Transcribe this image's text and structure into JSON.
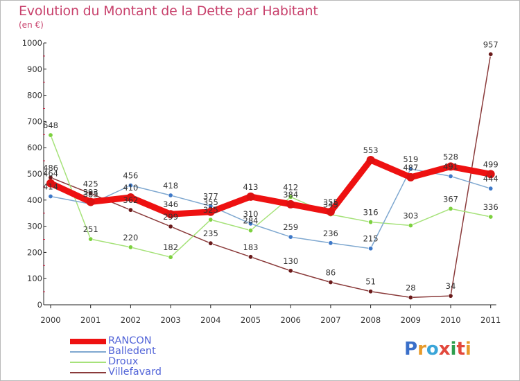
{
  "title": "Evolution du Montant de la Dette par Habitant",
  "subtitle": "(en €)",
  "logo": {
    "text": "Proxiti",
    "letters": [
      {
        "ch": "P",
        "color": "#3a6fc9"
      },
      {
        "ch": "r",
        "color": "#e89a2a"
      },
      {
        "ch": "o",
        "color": "#3aa5d8"
      },
      {
        "ch": "x",
        "color": "#e2483c"
      },
      {
        "ch": "i",
        "color": "#2e9e4e"
      },
      {
        "ch": "t",
        "color": "#e2483c"
      },
      {
        "ch": "i",
        "color": "#e89a2a"
      }
    ]
  },
  "chart_data": {
    "type": "line",
    "title": "Evolution du Montant de la Dette par Habitant",
    "ylabel": "(en €)",
    "x": [
      "2000",
      "2001",
      "2002",
      "2003",
      "2004",
      "2005",
      "2006",
      "2007",
      "2008",
      "2009",
      "2010",
      "2011"
    ],
    "ylim": [
      0,
      1000
    ],
    "yticks": [
      0,
      100,
      200,
      300,
      400,
      500,
      600,
      700,
      800,
      900,
      1000
    ],
    "grid": false,
    "legend_position": "bottom-left",
    "series": [
      {
        "name": "RANCON",
        "color": "#ee1111",
        "marker": "#dd1111",
        "width": 9,
        "values": [
          464,
          393,
          410,
          346,
          355,
          413,
          384,
          355,
          553,
          487,
          528,
          499
        ]
      },
      {
        "name": "Balledent",
        "color": "#7fa8d0",
        "marker": "#3d78c8",
        "width": 1.5,
        "values": [
          414,
          385,
          456,
          418,
          377,
          310,
          259,
          236,
          215,
          519,
          491,
          444
        ]
      },
      {
        "name": "Droux",
        "color": "#a6e27a",
        "marker": "#7dd13f",
        "width": 1.5,
        "values": [
          648,
          251,
          220,
          182,
          325,
          284,
          412,
          345,
          316,
          303,
          367,
          336
        ]
      },
      {
        "name": "Villefavard",
        "color": "#8a3a3a",
        "marker": "#6a1a1a",
        "width": 1.5,
        "values": [
          486,
          425,
          362,
          299,
          235,
          183,
          130,
          86,
          51,
          28,
          34,
          957
        ]
      }
    ]
  }
}
